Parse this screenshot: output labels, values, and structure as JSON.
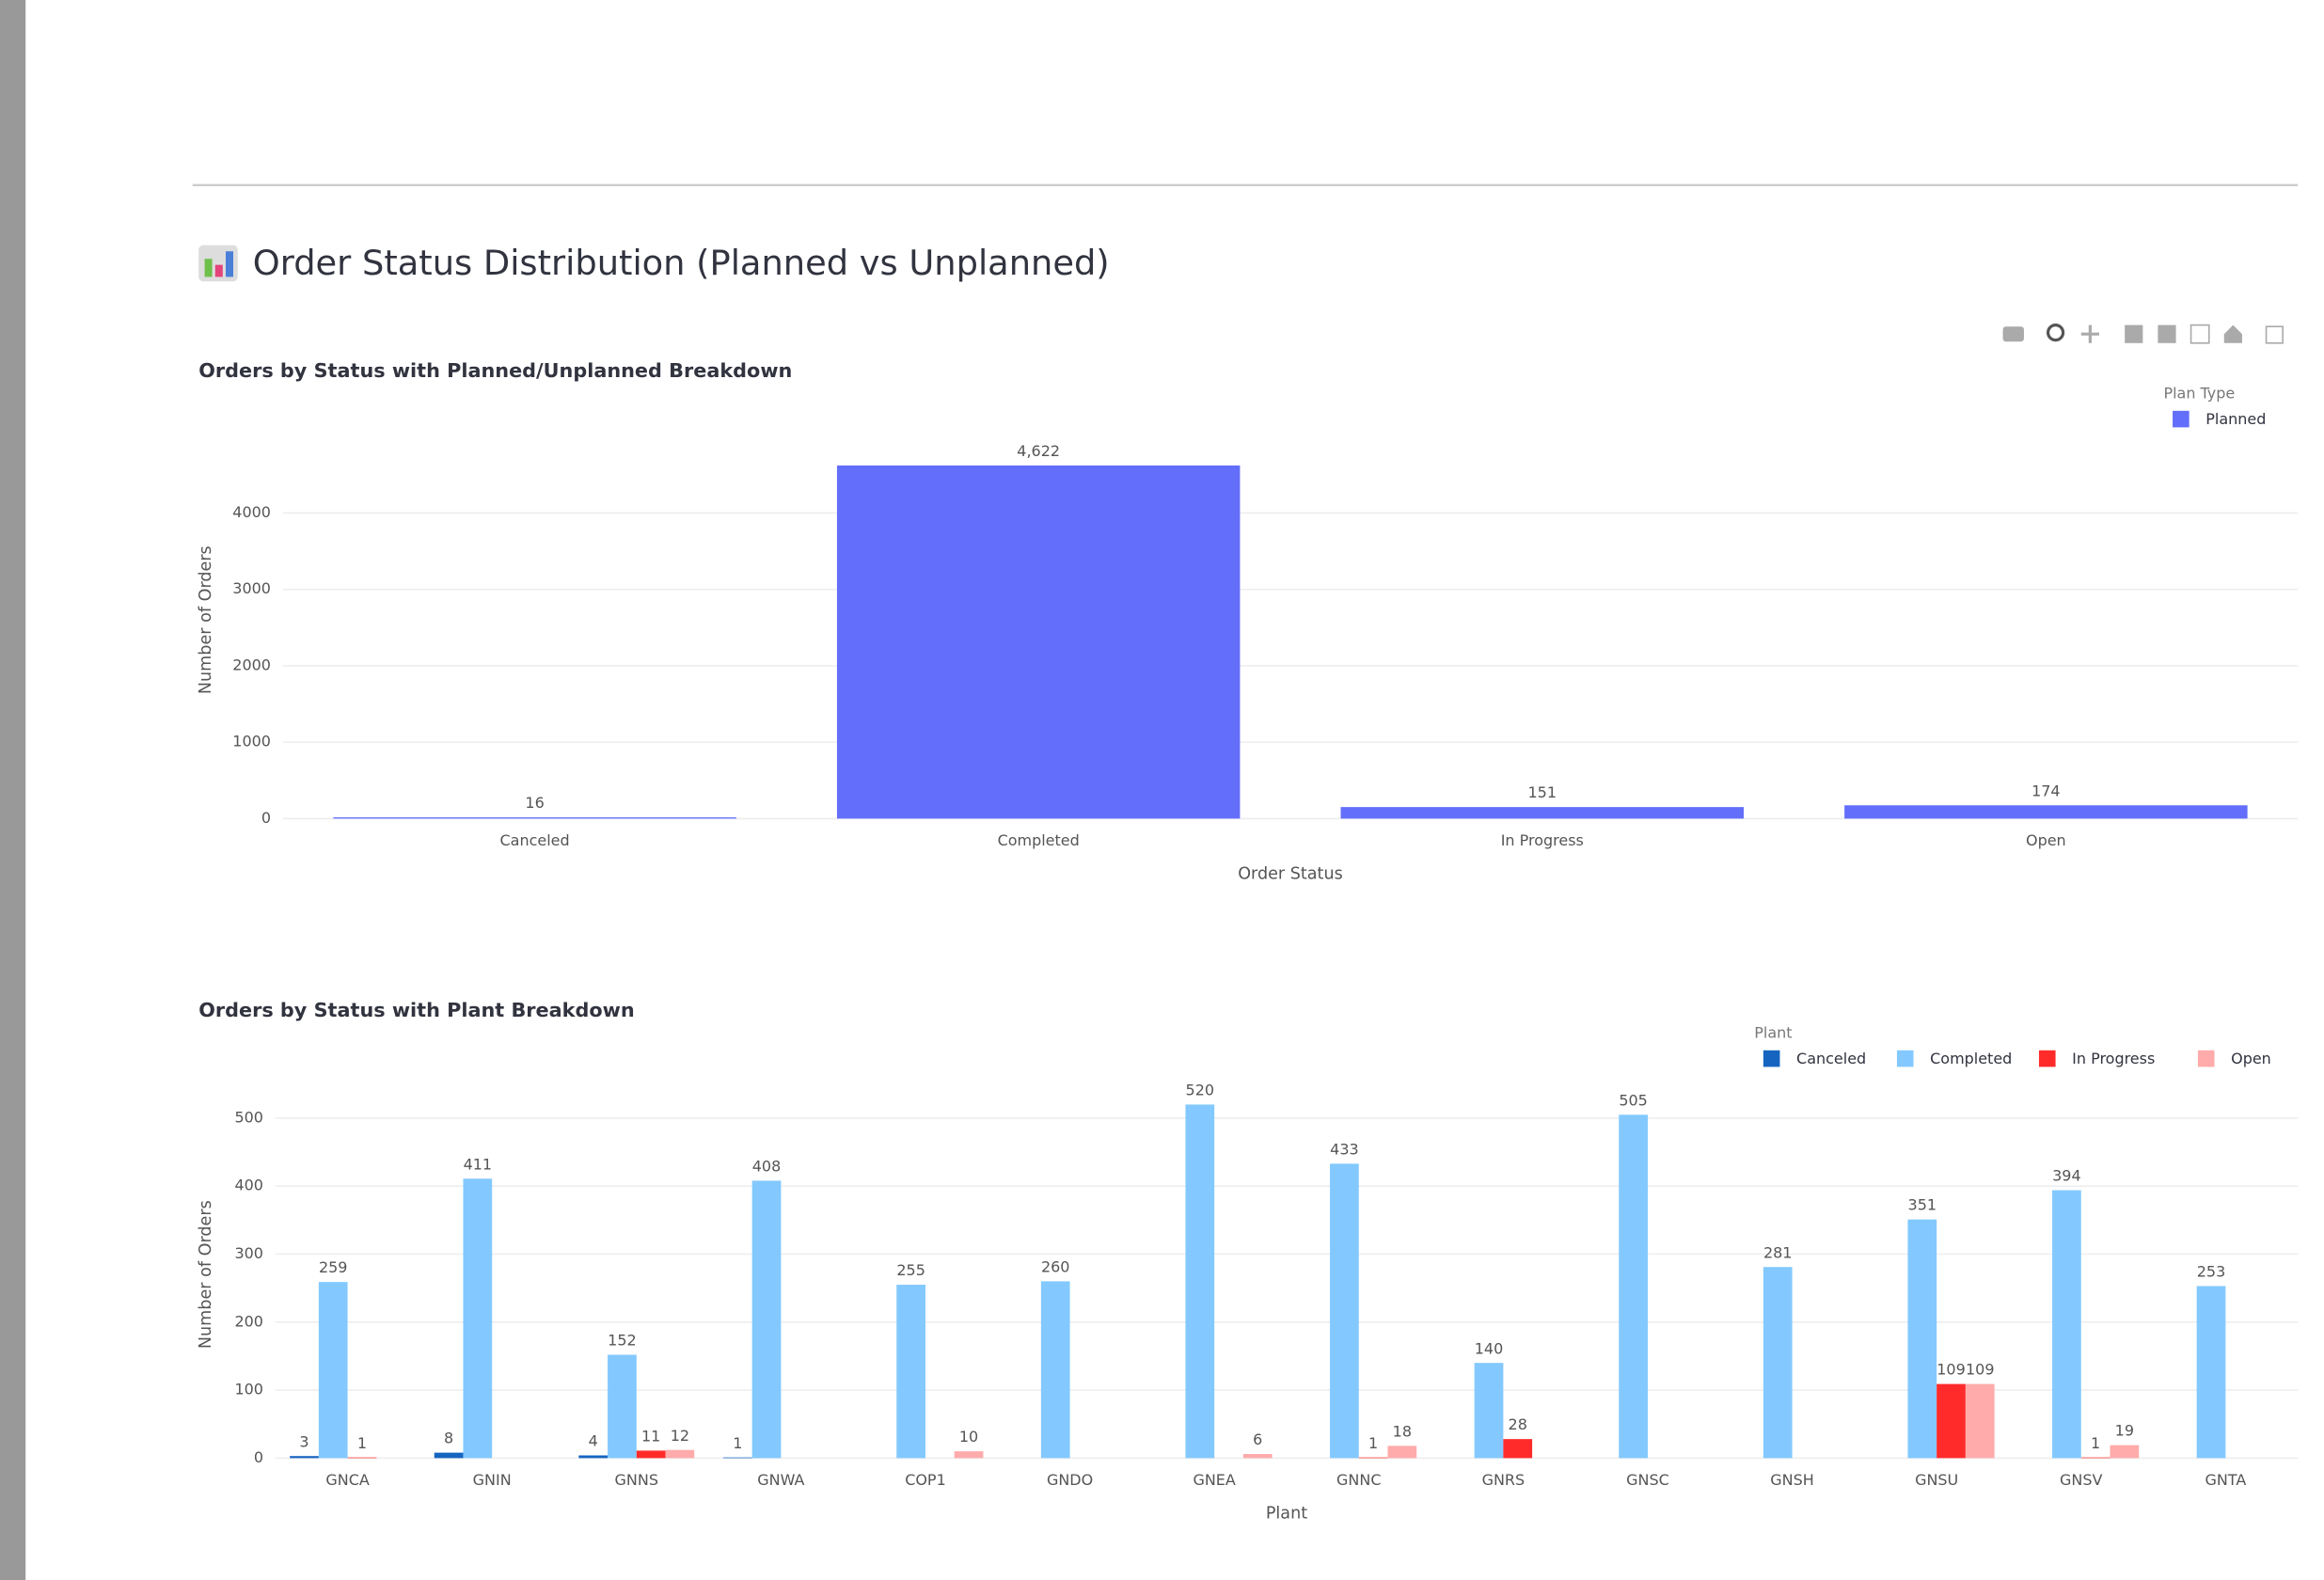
{
  "header": {
    "title": "Order Status Distribution (Planned vs Unplanned)"
  },
  "chart_data": [
    {
      "type": "bar",
      "title": "Orders by Status with Planned/Unplanned Breakdown",
      "x_label": "Order Status",
      "y_label": "Number of Orders",
      "legend_title": "Plan Type",
      "categories": [
        "Canceled",
        "Completed",
        "In Progress",
        "Open"
      ],
      "series": [
        {
          "name": "Planned",
          "color": "#636efa",
          "values": [
            16,
            4622,
            151,
            174
          ],
          "value_labels": [
            "16",
            "4,622",
            "151",
            "174"
          ]
        }
      ],
      "ylim": [
        0,
        5200
      ],
      "yticks": [
        0,
        1000,
        2000,
        3000,
        4000
      ],
      "grid": true,
      "legend": "top-right"
    },
    {
      "type": "bar",
      "title": "Orders by Status with Plant Breakdown",
      "x_label": "Plant",
      "y_label": "Number of Orders",
      "legend_title": "Plant",
      "categories": [
        "GNCA",
        "GNIN",
        "GNNS",
        "GNWA",
        "COP1",
        "GNDO",
        "GNEA",
        "GNNC",
        "GNRS",
        "GNSC",
        "GNSH",
        "GNSU",
        "GNSV",
        "GNTA"
      ],
      "series": [
        {
          "name": "Canceled",
          "color": "#1565c0",
          "values": [
            3,
            8,
            4,
            1,
            null,
            null,
            null,
            null,
            null,
            null,
            null,
            null,
            null,
            null
          ]
        },
        {
          "name": "Completed",
          "color": "#83c9ff",
          "values": [
            259,
            411,
            152,
            408,
            255,
            260,
            520,
            433,
            140,
            505,
            281,
            351,
            394,
            253
          ]
        },
        {
          "name": "In Progress",
          "color": "#ff2b2b",
          "values": [
            1,
            null,
            11,
            null,
            null,
            null,
            null,
            1,
            28,
            null,
            null,
            109,
            1,
            null
          ]
        },
        {
          "name": "Open",
          "color": "#ffabab",
          "values": [
            null,
            null,
            12,
            null,
            10,
            null,
            6,
            18,
            null,
            null,
            null,
            109,
            19,
            null
          ]
        }
      ],
      "ylim": [
        0,
        540
      ],
      "yticks": [
        0,
        100,
        200,
        300,
        400,
        500
      ],
      "grid": true,
      "legend": "top-right"
    }
  ]
}
